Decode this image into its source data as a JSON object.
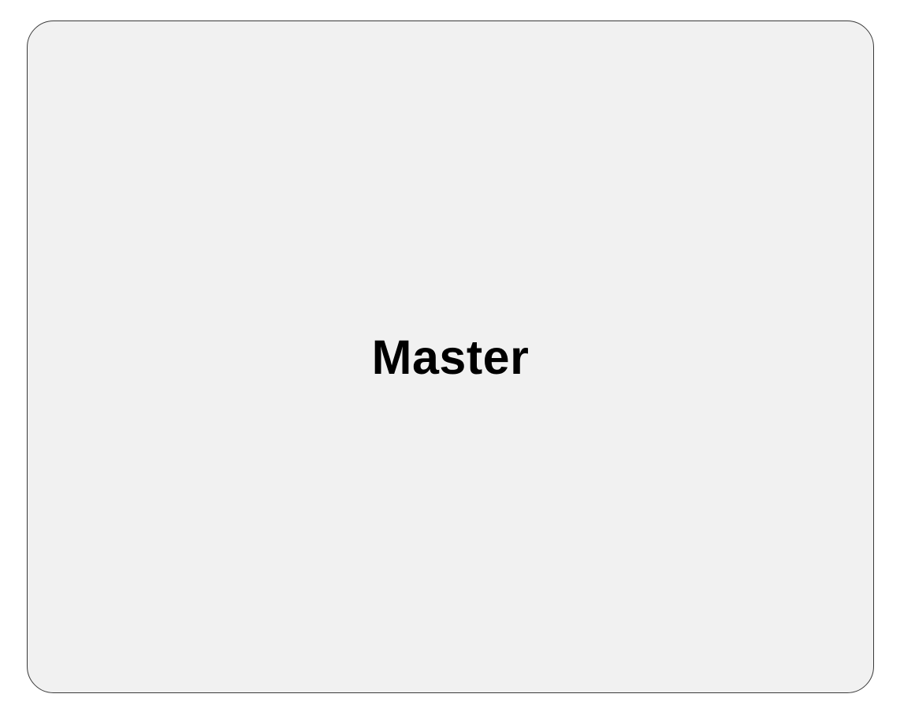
{
  "panel": {
    "label": "Master"
  },
  "colors": {
    "panel_background": "#f1f1f1",
    "panel_border": "#3a3a3a",
    "label_text": "#000000",
    "page_background": "#ffffff"
  }
}
